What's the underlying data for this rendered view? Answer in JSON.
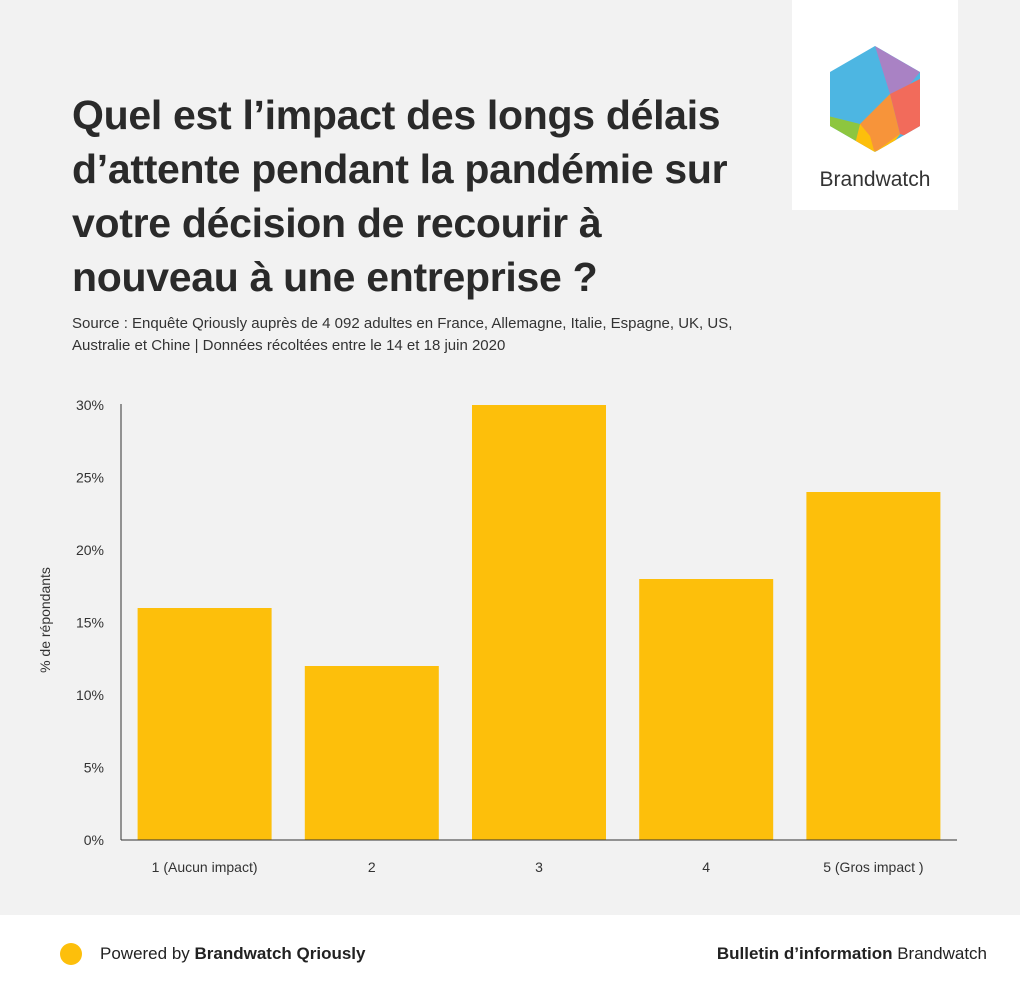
{
  "title": "Quel est l’impact des longs délais d’attente pendant la pandémie sur votre décision de recourir à nouveau à une entreprise ?",
  "subtitle": "Source : Enquête Qriously auprès de 4 092 adultes en France, Allemagne, Italie, Espagne, UK, US, Australie et Chine | Données récoltées entre le 14 et 18 juin 2020",
  "logo": {
    "name": "Brandwatch",
    "icon": "brandwatch-hexagon-logo"
  },
  "colors": {
    "bar": "#fdbf0b",
    "panel": "#f2f2f2",
    "text": "#2a2a2a"
  },
  "chart_data": {
    "type": "bar",
    "categories": [
      "1 (Aucun impact)",
      "2",
      "3",
      "4",
      "5 (Gros impact )"
    ],
    "values": [
      16,
      12,
      30,
      18,
      24
    ],
    "ylabel": "% de répondants",
    "xlabel": "",
    "ylim": [
      0,
      30
    ],
    "yticks": [
      0,
      5,
      10,
      15,
      20,
      25,
      30
    ],
    "ytick_labels": [
      "0%",
      "5%",
      "10%",
      "15%",
      "20%",
      "25%",
      "30%"
    ],
    "grid": false,
    "legend": "none"
  },
  "footer": {
    "powered_prefix": "Powered by ",
    "powered_brand": "Brandwatch Qriously",
    "bulletin_bold": "Bulletin d’information",
    "bulletin_rest": " Brandwatch"
  }
}
